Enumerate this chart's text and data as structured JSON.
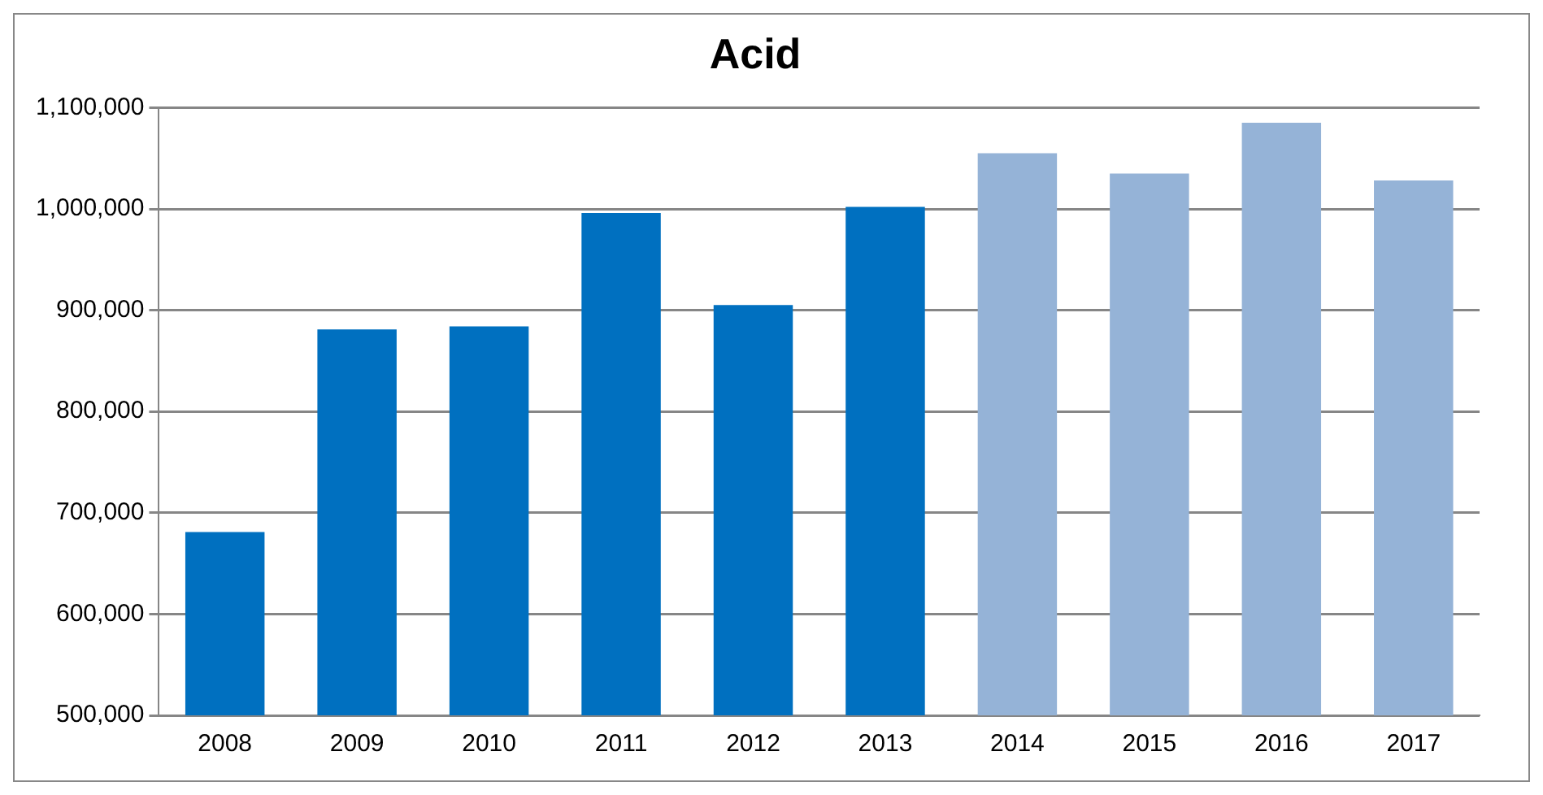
{
  "chart_data": {
    "type": "bar",
    "title": "Acid",
    "categories": [
      "2008",
      "2009",
      "2010",
      "2011",
      "2012",
      "2013",
      "2014",
      "2015",
      "2016",
      "2017"
    ],
    "values": [
      681000,
      881000,
      884000,
      996000,
      905000,
      1002000,
      1055000,
      1035000,
      1085000,
      1028000
    ],
    "colors": [
      "#0070c0",
      "#0070c0",
      "#0070c0",
      "#0070c0",
      "#0070c0",
      "#0070c0",
      "#95b3d7",
      "#95b3d7",
      "#95b3d7",
      "#95b3d7"
    ],
    "ylim": [
      500000,
      1100000
    ],
    "yticks": [
      {
        "value": 500000,
        "label": "500,000"
      },
      {
        "value": 600000,
        "label": "600,000"
      },
      {
        "value": 700000,
        "label": "700,000"
      },
      {
        "value": 800000,
        "label": "800,000"
      },
      {
        "value": 900000,
        "label": "900,000"
      },
      {
        "value": 1000000,
        "label": "1,000,000"
      },
      {
        "value": 1100000,
        "label": "1,100,000"
      }
    ],
    "grid": "y",
    "legend": false
  }
}
